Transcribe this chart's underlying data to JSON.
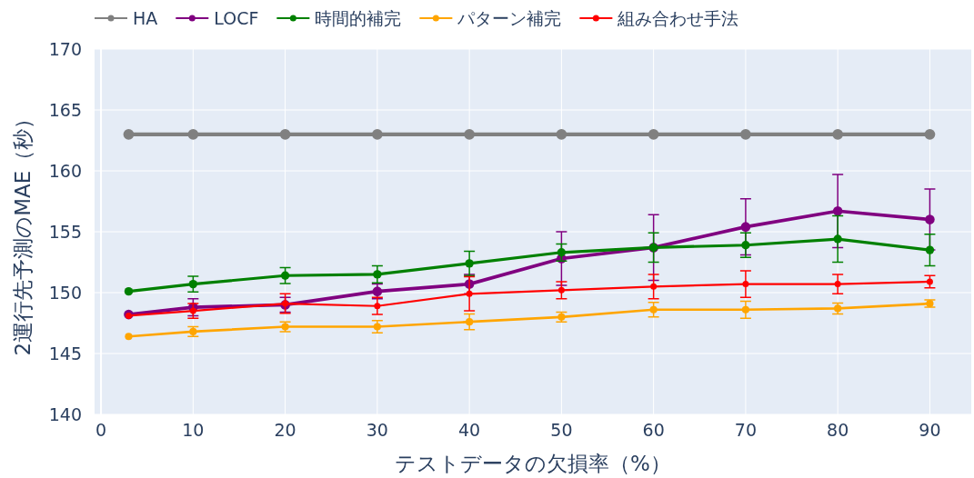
{
  "chart_data": {
    "type": "line",
    "xlabel": "テストデータの欠損率（%）",
    "ylabel": "2運行先予測のMAE（秒）",
    "x": [
      3,
      10,
      20,
      30,
      40,
      50,
      60,
      70,
      80,
      90
    ],
    "xlim": [
      -0.7,
      94.5
    ],
    "xticks": [
      0,
      10,
      20,
      30,
      40,
      50,
      60,
      70,
      80,
      90
    ],
    "ylim": [
      140,
      170
    ],
    "yticks": [
      140,
      145,
      150,
      155,
      160,
      165,
      170
    ],
    "grid": true,
    "legend": "top left",
    "marker": "circle",
    "line_style": "solid",
    "series": [
      {
        "name": "HA",
        "color": "#808080",
        "values": [
          163,
          163,
          163,
          163,
          163,
          163,
          163,
          163,
          163,
          163
        ]
      },
      {
        "name": "LOCF",
        "color": "#800080",
        "values": [
          148.2,
          148.8,
          149.0,
          150.1,
          150.7,
          152.8,
          153.7,
          155.4,
          156.7,
          156.0
        ],
        "errors": [
          null,
          0.7,
          0.6,
          0.6,
          0.8,
          2.2,
          2.7,
          2.3,
          3.0,
          2.5
        ]
      },
      {
        "name": "時間的補完",
        "color": "#008000",
        "values": [
          150.1,
          150.7,
          151.4,
          151.5,
          152.4,
          153.3,
          153.7,
          153.9,
          154.4,
          153.5
        ],
        "errors": [
          null,
          0.65,
          0.65,
          0.7,
          1.0,
          0.7,
          1.2,
          1.0,
          1.9,
          1.3
        ]
      },
      {
        "name": "パターン補完",
        "color": "#ffa500",
        "values": [
          146.4,
          146.8,
          147.2,
          147.2,
          147.6,
          148.0,
          148.6,
          148.6,
          148.7,
          149.1
        ],
        "errors": [
          null,
          0.4,
          0.4,
          0.5,
          0.65,
          0.4,
          0.6,
          0.7,
          0.45,
          0.3
        ]
      },
      {
        "name": "組み合わせ手法",
        "color": "#ff0000",
        "values": [
          148.1,
          148.5,
          149.1,
          148.9,
          149.9,
          150.2,
          150.5,
          150.7,
          150.7,
          150.9
        ],
        "errors": [
          null,
          0.6,
          0.8,
          0.7,
          1.4,
          0.7,
          1.0,
          1.1,
          0.8,
          0.5
        ]
      }
    ]
  }
}
